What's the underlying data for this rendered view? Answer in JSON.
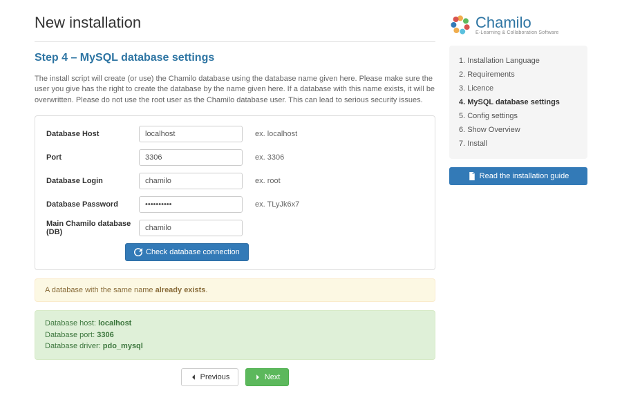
{
  "header": {
    "title": "New installation"
  },
  "step": {
    "title": "Step 4 – MySQL database settings"
  },
  "description": "The install script will create (or use) the Chamilo database using the database name given here. Please make sure the user you give has the right to create the database by the name given here. If a database with this name exists, it will be overwritten. Please do not use the root user as the Chamilo database user. This can lead to serious security issues.",
  "form": {
    "fields": [
      {
        "label": "Database Host",
        "value": "localhost",
        "hint": "ex. localhost",
        "type": "text",
        "name": "db-host"
      },
      {
        "label": "Port",
        "value": "3306",
        "hint": "ex. 3306",
        "type": "text",
        "name": "db-port"
      },
      {
        "label": "Database Login",
        "value": "chamilo",
        "hint": "ex. root",
        "type": "text",
        "name": "db-login"
      },
      {
        "label": "Database Password",
        "value": "••••••••••",
        "hint": "ex. TLyJk6x7",
        "type": "password",
        "name": "db-password"
      },
      {
        "label": "Main Chamilo database (DB)",
        "value": "chamilo",
        "hint": "",
        "type": "text",
        "name": "db-name"
      }
    ],
    "check_button": "Check database connection"
  },
  "warning": {
    "prefix": "A database with the same name ",
    "bold": "already exists",
    "suffix": "."
  },
  "success": {
    "lines": [
      {
        "label": "Database host: ",
        "value": "localhost"
      },
      {
        "label": "Database port: ",
        "value": "3306"
      },
      {
        "label": "Database driver: ",
        "value": "pdo_mysql"
      }
    ]
  },
  "nav": {
    "prev": "Previous",
    "next": "Next"
  },
  "brand": {
    "name": "Chamilo",
    "tagline": "E-Learning & Collaboration Software"
  },
  "steps": [
    {
      "num": "1.",
      "label": "Installation Language",
      "active": false
    },
    {
      "num": "2.",
      "label": "Requirements",
      "active": false
    },
    {
      "num": "3.",
      "label": "Licence",
      "active": false
    },
    {
      "num": "4.",
      "label": "MySQL database settings",
      "active": true
    },
    {
      "num": "5.",
      "label": "Config settings",
      "active": false
    },
    {
      "num": "6.",
      "label": "Show Overview",
      "active": false
    },
    {
      "num": "7.",
      "label": "Install",
      "active": false
    }
  ],
  "guide": {
    "label": "Read the installation guide"
  }
}
